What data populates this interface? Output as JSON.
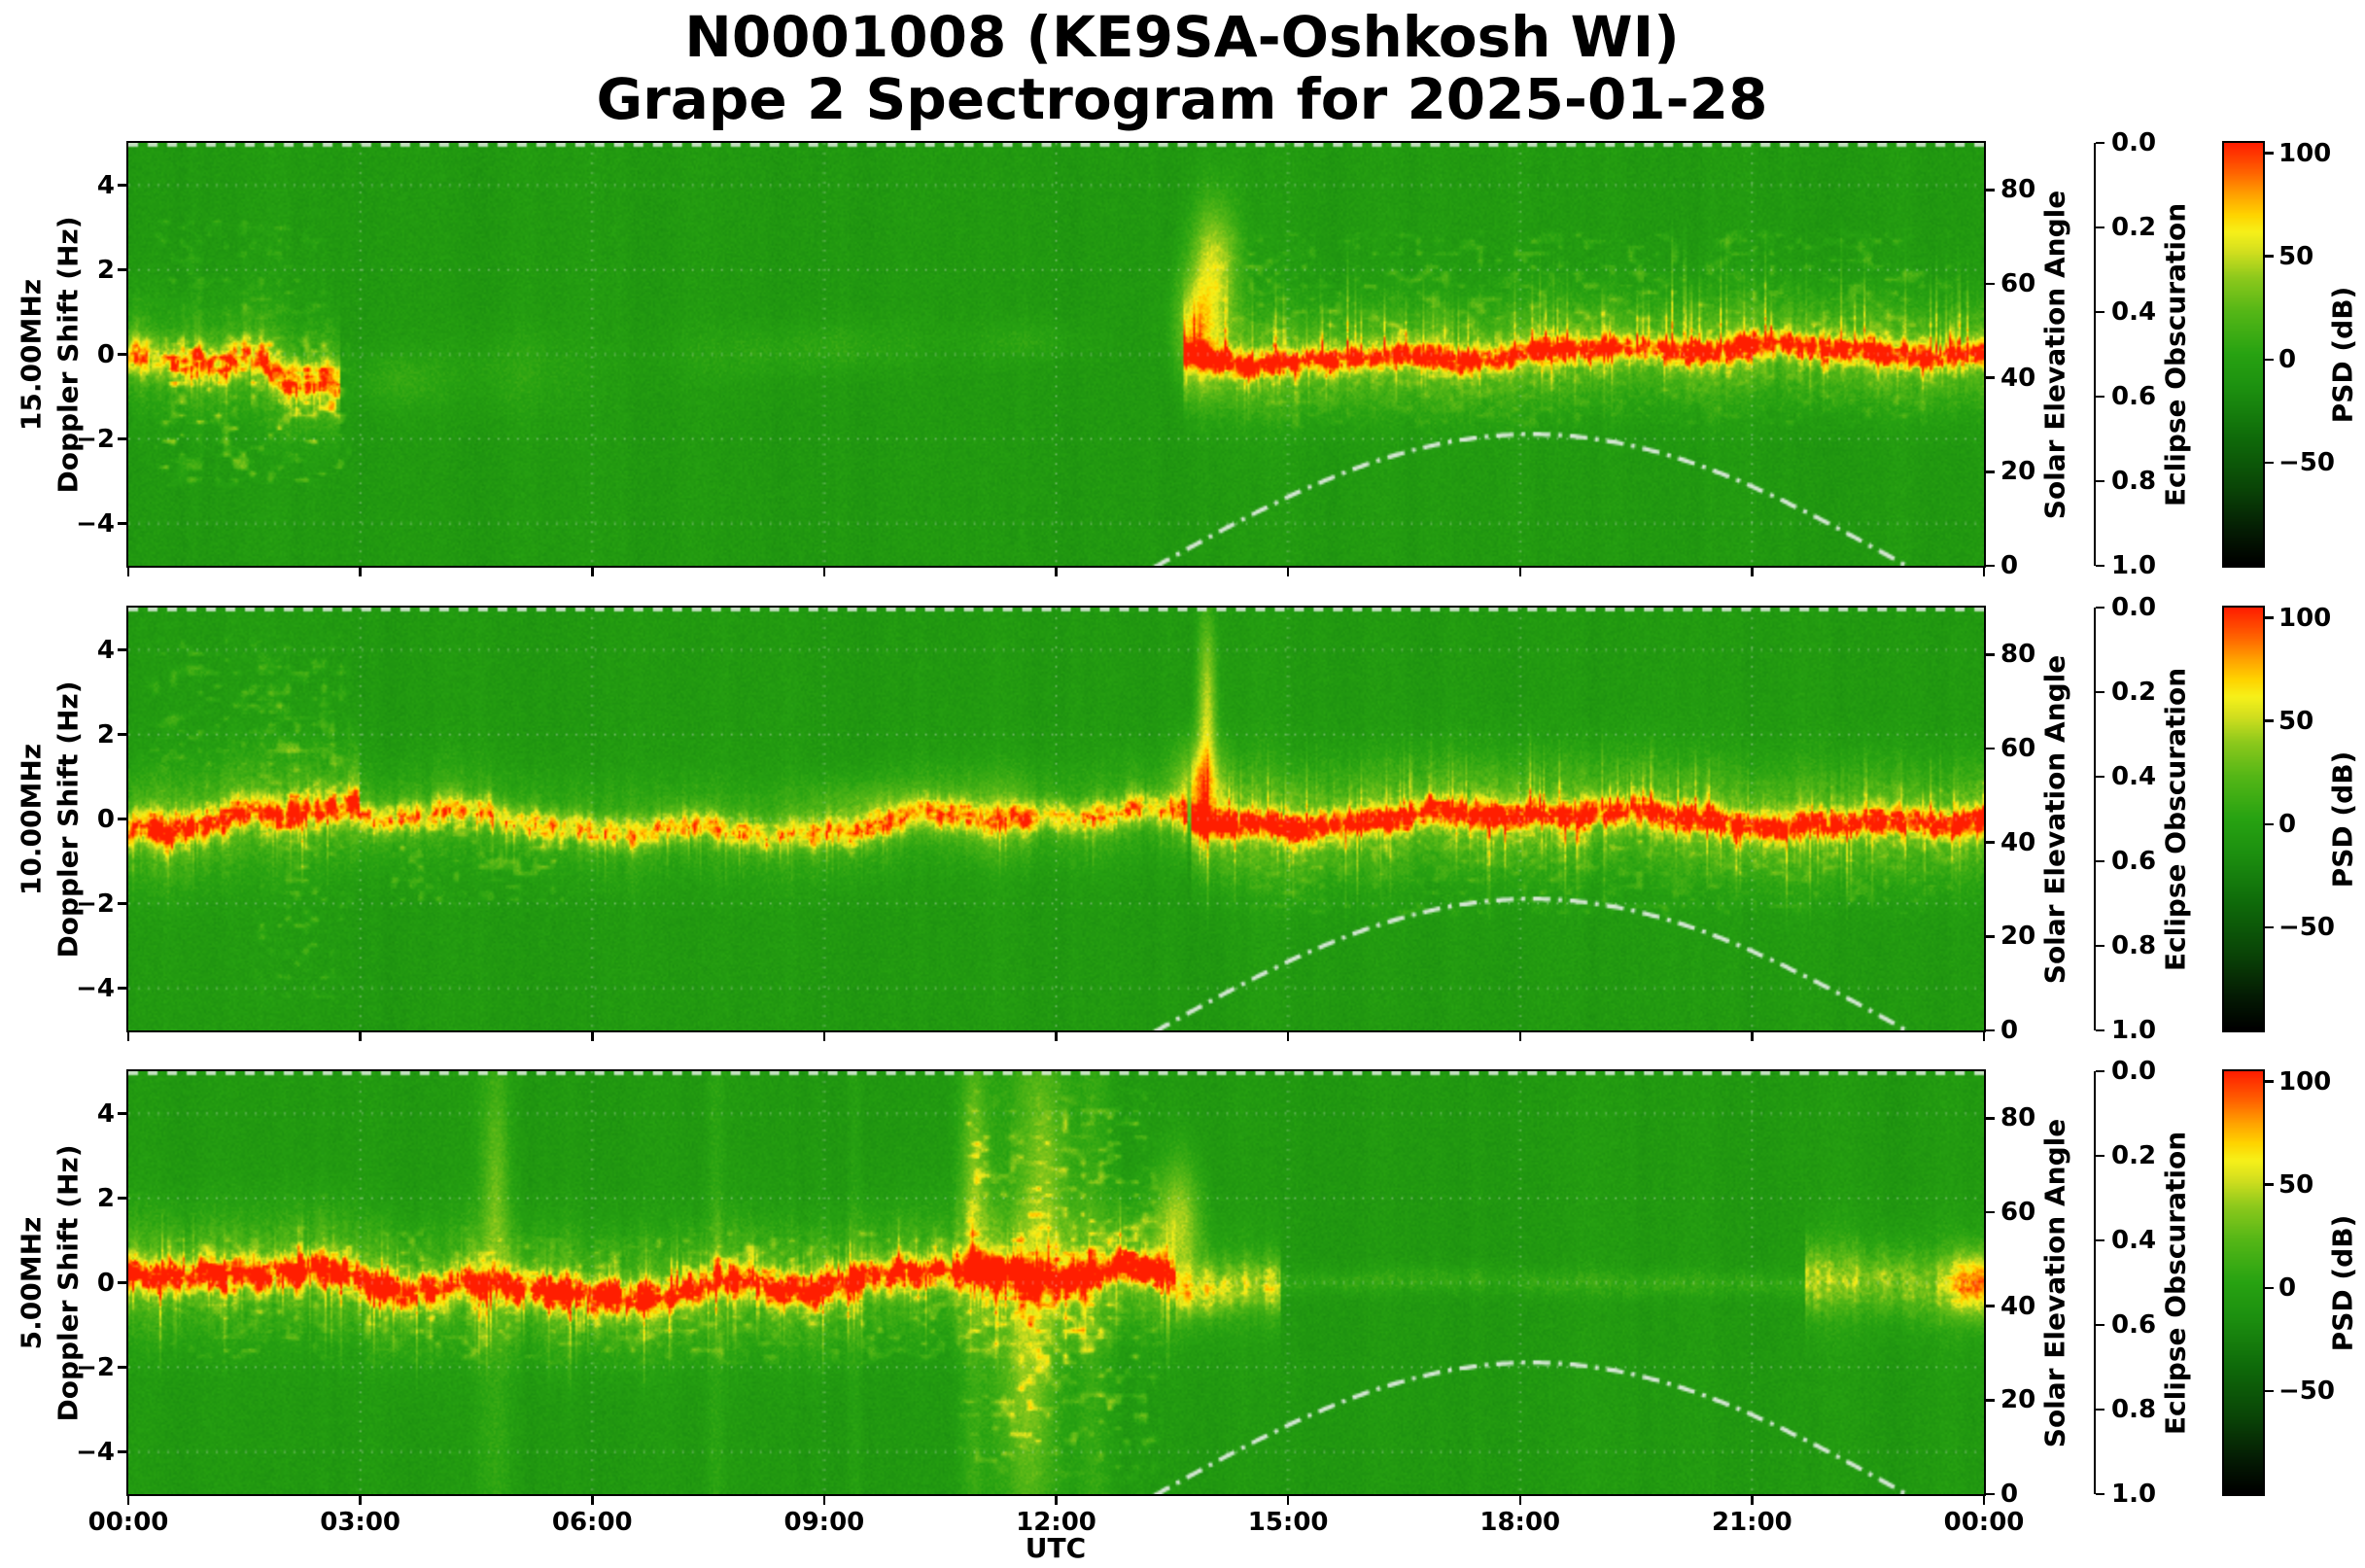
{
  "figure": {
    "title_line1": "N0001008 (KE9SA-Oshkosh WI)",
    "title_line2": "Grape 2 Spectrogram for 2025-01-28"
  },
  "chart_data": {
    "type": "heatmap",
    "title": "N0001008 (KE9SA-Oshkosh WI) — Grape 2 Spectrogram for 2025-01-28",
    "x": {
      "label": "UTC",
      "ticks": [
        "00:00",
        "03:00",
        "06:00",
        "09:00",
        "12:00",
        "15:00",
        "18:00",
        "21:00",
        "00:00"
      ],
      "tick_hours": [
        0,
        3,
        6,
        9,
        12,
        15,
        18,
        21,
        24
      ],
      "range_hours": [
        0,
        24
      ]
    },
    "doppler_axis": {
      "label": "Doppler Shift (Hz)",
      "ticks": [
        "4",
        "2",
        "0",
        "−2",
        "−4"
      ],
      "tick_values": [
        4,
        2,
        0,
        -2,
        -4
      ],
      "range": [
        -5,
        5
      ]
    },
    "solar_axis": {
      "label": "Solar Elevation Angle",
      "ticks": [
        "80",
        "60",
        "40",
        "20",
        "0"
      ],
      "tick_values": [
        80,
        60,
        40,
        20,
        0
      ],
      "range": [
        0,
        90
      ]
    },
    "eclipse_axis": {
      "label": "Eclipse Obscuration",
      "ticks": [
        "0.0",
        "0.2",
        "0.4",
        "0.6",
        "0.8",
        "1.0"
      ],
      "tick_values": [
        0,
        0.2,
        0.4,
        0.6,
        0.8,
        1
      ],
      "range": [
        0,
        1
      ],
      "inverted": true
    },
    "colorbar": {
      "label": "PSD (dB)",
      "ticks": [
        "100",
        "50",
        "0",
        "−50"
      ],
      "tick_values": [
        100,
        50,
        0,
        -50
      ],
      "range": [
        -100,
        105
      ]
    },
    "solar_elevation_curve": {
      "rise_utc": 13.3,
      "noon_utc": 18.15,
      "set_utc": 23.0,
      "peak_deg": 28,
      "style": "dash-dot",
      "color": "#e4eee4"
    },
    "colormap_stops": [
      {
        "pos": 0.0,
        "color": "#000000"
      },
      {
        "pos": 0.08,
        "color": "#051c04"
      },
      {
        "pos": 0.18,
        "color": "#0a4507"
      },
      {
        "pos": 0.3,
        "color": "#0f6b0a"
      },
      {
        "pos": 0.42,
        "color": "#1d9110"
      },
      {
        "pos": 0.5,
        "color": "#28a312"
      },
      {
        "pos": 0.6,
        "color": "#55b717"
      },
      {
        "pos": 0.68,
        "color": "#8cc91c"
      },
      {
        "pos": 0.745,
        "color": "#d4e01f"
      },
      {
        "pos": 0.79,
        "color": "#f7f11a"
      },
      {
        "pos": 0.83,
        "color": "#ffd400"
      },
      {
        "pos": 0.88,
        "color": "#ffa000"
      },
      {
        "pos": 0.93,
        "color": "#ff6400"
      },
      {
        "pos": 1.0,
        "color": "#ff1e00"
      }
    ],
    "panels": [
      {
        "frequency_label": "15.00MHz",
        "features": [
          {
            "type": "carrier",
            "t0": 0,
            "t1": 2.75,
            "c0": 0.2,
            "amp": 62,
            "width": 0.3,
            "wander": 0.9,
            "drift": -1.1,
            "halo": 0.4,
            "halow": 0.9,
            "spike_down": {
              "len": 1.6,
              "density": 0.3,
              "amp": 26
            }
          },
          {
            "type": "scatter",
            "t0": 0.3,
            "t1": 2.9,
            "f0": -3.2,
            "f1": 0.6,
            "amp": 24,
            "density": 0.55
          },
          {
            "type": "scatter",
            "t0": 0.3,
            "t1": 2.6,
            "f0": 0.8,
            "f1": 3.4,
            "amp": 9,
            "density": 0.3
          },
          {
            "type": "blob",
            "t": 3.5,
            "f": -0.6,
            "dt": 0.6,
            "df": 0.7,
            "amp": 13
          },
          {
            "type": "blob",
            "t": 5.0,
            "f": -0.4,
            "dt": 0.9,
            "df": 1.0,
            "amp": 10
          },
          {
            "type": "blob",
            "t": 8.0,
            "f": 0.0,
            "dt": 1.1,
            "df": 0.7,
            "amp": 9
          },
          {
            "type": "blob",
            "t": 9.4,
            "f": 0.2,
            "dt": 0.9,
            "df": 0.6,
            "amp": 10
          },
          {
            "type": "blob",
            "t": 11.6,
            "f": 0.3,
            "dt": 0.8,
            "df": 0.5,
            "amp": 10
          },
          {
            "type": "burst",
            "t": 13.8,
            "f": 0.6,
            "dt": 0.28,
            "df": 1.3,
            "amp": 48
          },
          {
            "type": "burst",
            "t": 14.05,
            "f": 2.1,
            "dt": 0.3,
            "df": 1.5,
            "amp": 55
          },
          {
            "type": "carrier",
            "t0": 13.65,
            "t1": 24,
            "c0": 0,
            "amp": 85,
            "width": 0.2,
            "wander": 0.3,
            "drift": 0,
            "halo": 0.45,
            "halow": 0.8,
            "spike_up": {
              "len": 2.9,
              "density": 0.5,
              "amp": 42
            },
            "spike_down": {
              "len": 1.7,
              "density": 0.3,
              "amp": 26
            }
          },
          {
            "type": "scatter",
            "t0": 13.7,
            "t1": 24,
            "f0": 0.2,
            "f1": 3.0,
            "amp": 12,
            "density": 0.4
          },
          {
            "type": "scatter",
            "t0": 14.2,
            "t1": 24,
            "f0": -1.8,
            "f1": 0,
            "amp": 8,
            "density": 0.35
          }
        ]
      },
      {
        "frequency_label": "10.00MHz",
        "features": [
          {
            "type": "carrier",
            "t0": 0,
            "t1": 3.0,
            "c0": 0,
            "amp": 78,
            "width": 0.26,
            "wander": 0.5,
            "drift": 0,
            "halo": 0.4,
            "halow": 0.9,
            "spike_down": {
              "len": 2.0,
              "density": 0.4,
              "amp": 30
            },
            "spike_up": {
              "len": 1.0,
              "density": 0.2,
              "amp": 18
            }
          },
          {
            "type": "scatter",
            "t0": 0.2,
            "t1": 2.9,
            "f0": 1.0,
            "f1": 4.4,
            "amp": 11,
            "density": 0.32
          },
          {
            "type": "scatter",
            "t0": 1.6,
            "t1": 2.9,
            "f0": -4.6,
            "f1": 4.6,
            "amp": 12,
            "density": 0.4
          },
          {
            "type": "carrier",
            "t0": 3.0,
            "t1": 13.7,
            "c0": -0.1,
            "amp": 60,
            "width": 0.24,
            "wander": 0.45,
            "drift": 0,
            "halo": 0.35,
            "halow": 0.8,
            "spike_down": {
              "len": 1.6,
              "density": 0.3,
              "amp": 24
            }
          },
          {
            "type": "scatter",
            "t0": 3.2,
            "t1": 5.8,
            "f0": -2.2,
            "f1": 0.2,
            "amp": 14,
            "density": 0.5
          },
          {
            "type": "blob",
            "t": 9.7,
            "f": 0.3,
            "dt": 1.0,
            "df": 0.6,
            "amp": 18
          },
          {
            "type": "blob",
            "t": 11.2,
            "f": 0.1,
            "dt": 0.45,
            "df": 0.9,
            "amp": 20
          },
          {
            "type": "burst",
            "t": 13.85,
            "f": 0.7,
            "dt": 0.3,
            "df": 1.1,
            "amp": 55
          },
          {
            "type": "burst",
            "t": 13.95,
            "f": 2.6,
            "dt": 0.13,
            "df": 2.3,
            "amp": 55
          },
          {
            "type": "carrier",
            "t0": 13.75,
            "t1": 24,
            "c0": 0,
            "amp": 85,
            "width": 0.22,
            "wander": 0.3,
            "drift": 0,
            "halo": 0.45,
            "halow": 0.9,
            "spike_up": {
              "len": 2.1,
              "density": 0.45,
              "amp": 36
            },
            "spike_down": {
              "len": 2.4,
              "density": 0.4,
              "amp": 34
            }
          },
          {
            "type": "scatter",
            "t0": 14.2,
            "t1": 24,
            "f0": -2.4,
            "f1": 0,
            "amp": 9,
            "density": 0.35
          }
        ]
      },
      {
        "frequency_label": "5.00MHz",
        "features": [
          {
            "type": "carrier",
            "t0": 0,
            "t1": 13.55,
            "c0": 0,
            "amp": 95,
            "width": 0.26,
            "wander": 0.5,
            "drift": 0,
            "halo": 0.35,
            "halow": 1.0,
            "spike_up": {
              "len": 1.6,
              "density": 0.4,
              "amp": 38
            },
            "spike_down": {
              "len": 2.4,
              "density": 0.45,
              "amp": 40
            }
          },
          {
            "type": "scatter",
            "t0": 0.2,
            "t1": 13.4,
            "f0": -2.0,
            "f1": 1.4,
            "amp": 14,
            "density": 0.5
          },
          {
            "type": "band",
            "t": 4.75,
            "dt": 0.2,
            "amp": 13
          },
          {
            "type": "blob",
            "t": 4.75,
            "f": 2.2,
            "dt": 0.16,
            "df": 2.2,
            "amp": 22
          },
          {
            "type": "band",
            "t": 7.6,
            "dt": 0.12,
            "amp": 9
          },
          {
            "type": "band",
            "t": 9.4,
            "dt": 0.1,
            "amp": 7
          },
          {
            "type": "band",
            "t": 10.95,
            "dt": 0.18,
            "amp": 14
          },
          {
            "type": "blob",
            "t": 10.95,
            "f": 2.5,
            "dt": 0.2,
            "df": 2.5,
            "amp": 24
          },
          {
            "type": "band",
            "t": 11.65,
            "dt": 0.4,
            "amp": 18
          },
          {
            "type": "blob",
            "t": 11.6,
            "f": -2.2,
            "dt": 0.35,
            "df": 2.4,
            "amp": 26
          },
          {
            "type": "blob",
            "t": 11.9,
            "f": 2.4,
            "dt": 0.3,
            "df": 2.6,
            "amp": 26
          },
          {
            "type": "band",
            "t": 12.5,
            "dt": 0.22,
            "amp": 14
          },
          {
            "type": "scatter",
            "t0": 10.7,
            "t1": 13.4,
            "f0": -4.8,
            "f1": 4.8,
            "amp": 18,
            "density": 0.45
          },
          {
            "type": "burst",
            "t": 13.6,
            "f": 1.4,
            "dt": 0.28,
            "df": 1.5,
            "amp": 50
          },
          {
            "type": "carrier",
            "t0": 13.55,
            "t1": 14.9,
            "c0": 0,
            "amp": 45,
            "width": 0.4,
            "wander": 0.25,
            "drift": 0,
            "halo": 0.3,
            "halow": 0.9
          },
          {
            "type": "carrier",
            "t0": 14.9,
            "t1": 21.7,
            "c0": 0,
            "amp": 13,
            "width": 0.22,
            "wander": 0.1,
            "drift": 0
          },
          {
            "type": "carrier",
            "t0": 21.7,
            "t1": 24,
            "c0": 0,
            "amp": 38,
            "width": 0.5,
            "wander": 0.15,
            "drift": 0,
            "halo": 0.3,
            "halow": 1.0
          },
          {
            "type": "burst",
            "t": 23.9,
            "f": 0,
            "dt": 0.3,
            "df": 0.7,
            "amp": 50
          }
        ]
      }
    ]
  }
}
